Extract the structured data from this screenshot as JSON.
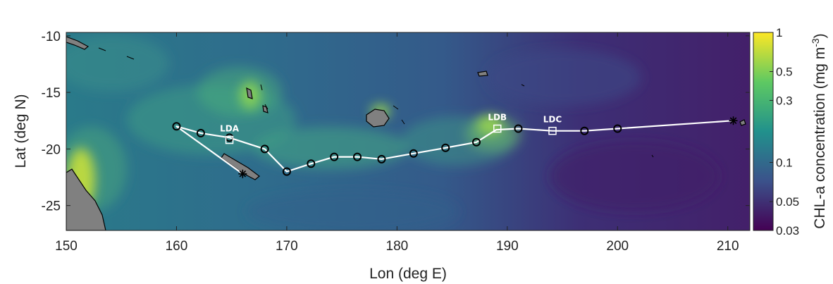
{
  "chart_data": {
    "type": "map",
    "xlabel": "Lon (deg E)",
    "ylabel": "Lat (deg N)",
    "xlim": [
      150,
      212
    ],
    "ylim": [
      -27.2,
      -9.7
    ],
    "xticks": [
      150,
      160,
      170,
      180,
      190,
      200,
      210
    ],
    "xtick_labels": [
      "150",
      "160",
      "170",
      "180",
      "190",
      "200",
      "210"
    ],
    "yticks": [
      -10,
      -15,
      -20,
      -25
    ],
    "ytick_labels": [
      "-10",
      "-15",
      "-20",
      "-25"
    ],
    "colorbar": {
      "label": "CHL-a concentration (mg m",
      "label_sup": "-3",
      "label_close": ")",
      "scale": "log",
      "range": [
        0.03,
        1
      ],
      "ticks": [
        1,
        0.5,
        0.3,
        0.1,
        0.05,
        0.03
      ],
      "tick_labels": [
        "1",
        "0.5",
        "0.3",
        "0.1",
        "0.05",
        "0.03"
      ],
      "colormap": [
        "#440154",
        "#3b528b",
        "#21918c",
        "#5ec962",
        "#fde725"
      ]
    },
    "land_color": "#808080",
    "track_color": "#ffffff",
    "track": [
      [
        166.0,
        -22.2
      ],
      [
        160.0,
        -18.0
      ],
      [
        162.2,
        -18.6
      ],
      [
        164.8,
        -19.0
      ],
      [
        168.0,
        -20.0
      ],
      [
        170.0,
        -22.0
      ],
      [
        172.2,
        -21.3
      ],
      [
        174.3,
        -20.7
      ],
      [
        176.4,
        -20.7
      ],
      [
        178.6,
        -20.9
      ],
      [
        181.5,
        -20.4
      ],
      [
        184.4,
        -19.9
      ],
      [
        187.2,
        -19.4
      ],
      [
        189.0,
        -18.3
      ],
      [
        191.0,
        -18.2
      ],
      [
        194.1,
        -18.4
      ],
      [
        197.0,
        -18.4
      ],
      [
        200.0,
        -18.2
      ],
      [
        210.5,
        -17.5
      ]
    ],
    "stations": [
      [
        160.0,
        -18.0
      ],
      [
        162.2,
        -18.6
      ],
      [
        164.8,
        -19.0
      ],
      [
        168.0,
        -20.0
      ],
      [
        170.0,
        -22.0
      ],
      [
        172.2,
        -21.3
      ],
      [
        174.3,
        -20.7
      ],
      [
        176.4,
        -20.7
      ],
      [
        178.6,
        -20.9
      ],
      [
        181.5,
        -20.4
      ],
      [
        184.4,
        -19.9
      ],
      [
        187.2,
        -19.4
      ],
      [
        191.0,
        -18.2
      ],
      [
        197.0,
        -18.4
      ],
      [
        200.0,
        -18.2
      ]
    ],
    "long_duration_stations": [
      {
        "name": "LDA",
        "lon": 164.8,
        "lat": -19.2
      },
      {
        "name": "LDB",
        "lon": 189.1,
        "lat": -18.2
      },
      {
        "name": "LDC",
        "lon": 194.1,
        "lat": -18.4
      }
    ],
    "endpoints": [
      {
        "lon": 166.0,
        "lat": -22.2
      },
      {
        "lon": 210.5,
        "lat": -17.5
      }
    ]
  }
}
